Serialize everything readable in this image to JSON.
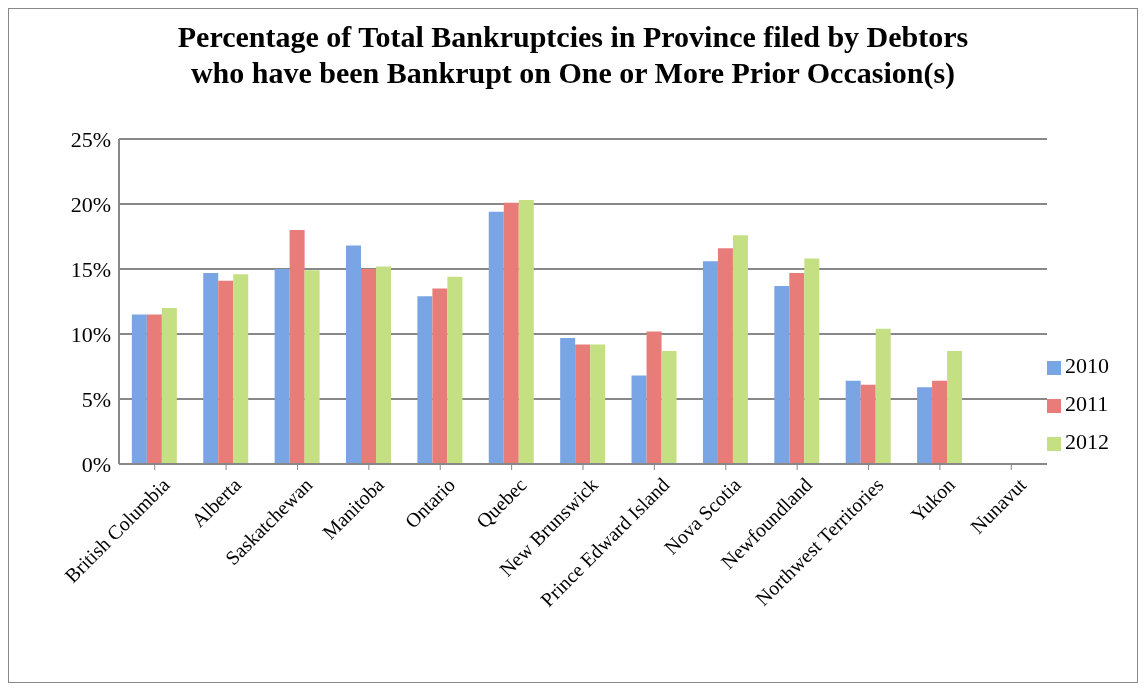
{
  "chart_data": {
    "type": "bar",
    "title": "Percentage of Total Bankruptcies in Province filed by Debtors\nwho have been Bankrupt on One or More Prior Occasion(s)",
    "categories": [
      "British Columbia",
      "Alberta",
      "Saskatchewan",
      "Manitoba",
      "Ontario",
      "Quebec",
      "New Brunswick",
      "Prince Edward Island",
      "Nova Scotia",
      "Newfoundland",
      "Northwest Territories",
      "Yukon",
      "Nunavut"
    ],
    "series": [
      {
        "name": "2010",
        "color": "#7aa5e4",
        "values": [
          11.5,
          14.7,
          15.0,
          16.8,
          12.9,
          19.4,
          9.7,
          6.8,
          15.6,
          13.7,
          6.4,
          5.9,
          null
        ]
      },
      {
        "name": "2011",
        "color": "#e87c79",
        "values": [
          11.5,
          14.1,
          18.0,
          15.0,
          13.5,
          20.1,
          9.2,
          10.2,
          16.6,
          14.7,
          6.1,
          6.4,
          null
        ]
      },
      {
        "name": "2012",
        "color": "#c5e083",
        "values": [
          12.0,
          14.6,
          14.9,
          15.2,
          14.4,
          20.3,
          9.2,
          8.7,
          17.6,
          15.8,
          10.4,
          8.7,
          null
        ]
      }
    ],
    "ylim": [
      0,
      25
    ],
    "yticks": [
      {
        "value": 0,
        "label": "0%"
      },
      {
        "value": 5,
        "label": "5%"
      },
      {
        "value": 10,
        "label": "10%"
      },
      {
        "value": 15,
        "label": "15%"
      },
      {
        "value": 20,
        "label": "20%"
      },
      {
        "value": 25,
        "label": "25%"
      }
    ],
    "grid": "y",
    "legend": "right"
  }
}
